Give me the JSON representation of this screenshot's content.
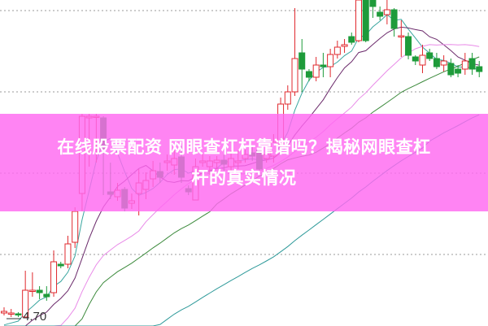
{
  "banner": {
    "line1": "在线股票配资 网眼查杠杆靠谱吗？揭秘网眼查杠",
    "line2": "杆的真实情况"
  },
  "chart_data": {
    "type": "candlestick",
    "title": "",
    "xlabel": "",
    "ylabel": "",
    "ylim": [
      4.59,
      8.6
    ],
    "grid": "dotted horizontal",
    "low_marker_label": "4.70",
    "colors": {
      "up": "#e0282d",
      "down": "#1e9b3a",
      "grid": "#999999"
    },
    "moving_averages": [
      {
        "period": 5,
        "color": "#3aa6a0"
      },
      {
        "period": 10,
        "color": "#6b2a6b"
      },
      {
        "period": 20,
        "color": "#e98be8"
      },
      {
        "period": 30,
        "color": "#3c8a3c"
      },
      {
        "period": 60,
        "color": "#2f9a9a"
      }
    ],
    "candles_ohlc": [
      [
        4.75,
        4.82,
        4.72,
        4.77
      ],
      [
        4.75,
        4.8,
        4.7,
        4.75
      ],
      [
        4.74,
        4.76,
        4.7,
        4.73
      ],
      [
        4.7,
        5.27,
        4.7,
        5.03
      ],
      [
        5.02,
        5.25,
        4.95,
        5.03
      ],
      [
        5.03,
        5.08,
        4.92,
        5.0
      ],
      [
        4.98,
        5.08,
        4.9,
        4.95
      ],
      [
        5.0,
        5.52,
        4.95,
        5.38
      ],
      [
        5.35,
        5.38,
        5.3,
        5.33
      ],
      [
        5.35,
        5.7,
        5.3,
        5.6
      ],
      [
        5.62,
        6.05,
        5.55,
        6.0
      ],
      [
        6.22,
        7.2,
        6.0,
        7.17
      ],
      [
        7.15,
        7.2,
        6.55,
        7.17
      ],
      [
        7.16,
        7.2,
        6.6,
        7.17
      ],
      [
        7.15,
        7.17,
        6.2,
        6.77
      ],
      [
        6.24,
        6.6,
        6.15,
        6.21
      ],
      [
        6.18,
        6.35,
        6.13,
        6.26
      ],
      [
        6.27,
        6.3,
        6.0,
        6.04
      ],
      [
        6.1,
        6.22,
        6.03,
        6.13
      ],
      [
        6.22,
        6.52,
        5.95,
        6.35
      ],
      [
        6.27,
        6.48,
        6.15,
        6.38
      ],
      [
        6.4,
        6.62,
        6.3,
        6.5
      ],
      [
        6.49,
        6.6,
        6.35,
        6.42
      ],
      [
        6.6,
        6.7,
        6.5,
        6.62
      ],
      [
        6.57,
        6.8,
        6.45,
        6.65
      ],
      [
        6.67,
        6.8,
        6.35,
        6.42
      ],
      [
        6.28,
        6.32,
        6.2,
        6.24
      ],
      [
        6.14,
        6.65,
        6.14,
        6.55
      ],
      [
        6.6,
        6.7,
        6.55,
        6.62
      ],
      [
        6.55,
        6.68,
        6.45,
        6.62
      ],
      [
        6.6,
        6.68,
        6.52,
        6.63
      ],
      [
        6.63,
        6.7,
        6.5,
        6.58
      ],
      [
        6.55,
        6.75,
        6.5,
        6.65
      ],
      [
        6.6,
        6.75,
        6.52,
        6.62
      ],
      [
        6.65,
        6.8,
        6.6,
        6.7
      ],
      [
        6.72,
        6.8,
        6.62,
        6.68
      ],
      [
        6.75,
        6.8,
        6.48,
        6.52
      ],
      [
        6.65,
        6.77,
        6.6,
        6.7
      ],
      [
        6.68,
        6.95,
        6.6,
        6.85
      ],
      [
        6.82,
        7.4,
        6.78,
        7.32
      ],
      [
        7.32,
        7.55,
        7.25,
        7.47
      ],
      [
        7.47,
        8.5,
        7.42,
        7.88
      ],
      [
        7.95,
        8.12,
        7.47,
        7.75
      ],
      [
        7.72,
        7.75,
        7.6,
        7.65
      ],
      [
        7.65,
        7.9,
        7.6,
        7.8
      ],
      [
        7.8,
        7.95,
        7.65,
        7.78
      ],
      [
        7.78,
        8.0,
        7.65,
        7.93
      ],
      [
        7.93,
        8.1,
        7.88,
        8.02
      ],
      [
        8.03,
        8.12,
        7.95,
        8.05
      ],
      [
        8.15,
        8.2,
        8.05,
        8.08
      ],
      [
        8.1,
        8.6,
        8.08,
        8.6
      ],
      [
        8.6,
        8.6,
        8.08,
        8.1
      ],
      [
        8.6,
        8.6,
        8.38,
        8.52
      ],
      [
        8.45,
        8.52,
        8.35,
        8.4
      ],
      [
        8.42,
        8.6,
        8.3,
        8.48
      ],
      [
        8.48,
        8.5,
        8.15,
        8.25
      ],
      [
        8.15,
        8.35,
        7.9,
        8.16
      ],
      [
        8.15,
        8.2,
        7.87,
        7.92
      ],
      [
        7.9,
        7.92,
        7.8,
        7.85
      ],
      [
        7.8,
        8.05,
        7.7,
        7.92
      ],
      [
        7.95,
        8.0,
        7.85,
        7.88
      ],
      [
        7.88,
        7.95,
        7.75,
        7.78
      ],
      [
        7.8,
        7.92,
        7.72,
        7.85
      ],
      [
        7.82,
        7.88,
        7.65,
        7.68
      ],
      [
        7.75,
        7.8,
        7.65,
        7.7
      ],
      [
        7.75,
        7.95,
        7.68,
        7.85
      ],
      [
        7.88,
        7.95,
        7.68,
        7.75
      ],
      [
        7.78,
        7.85,
        7.65,
        7.72
      ]
    ],
    "candle_format": "open, high, low, close",
    "gridline_prices": [
      8.47,
      7.47,
      6.47,
      5.47
    ]
  }
}
